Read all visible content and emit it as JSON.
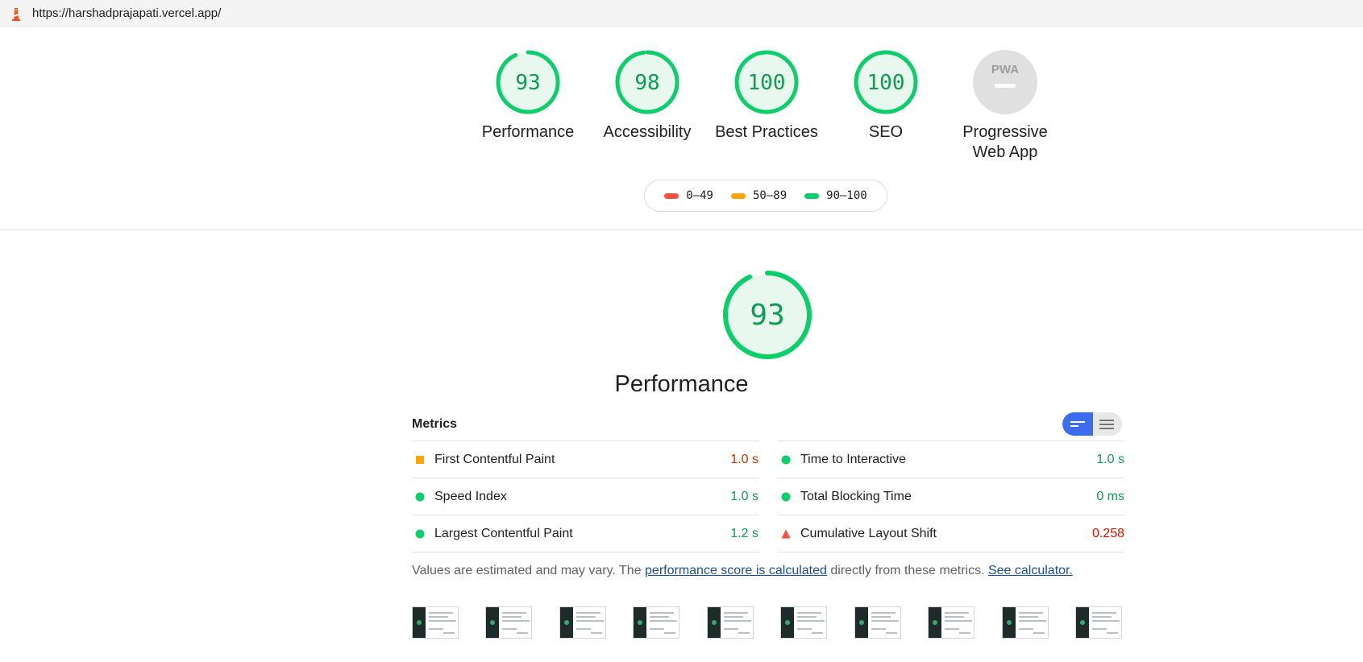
{
  "address_bar": {
    "url": "https://harshadprajapati.vercel.app/"
  },
  "colors": {
    "pass": "#0cce6b",
    "pass_text": "#0c9d4f",
    "average": "#ffa400",
    "average_text": "#c33300",
    "fail": "#ff4e42",
    "fail_text": "#eb0f00",
    "link": "#1a4ea0",
    "toggle_active": "#3c6df0"
  },
  "gauges": [
    {
      "score": "93",
      "label": "Performance",
      "value": 0.93,
      "status": "pass"
    },
    {
      "score": "98",
      "label": "Accessibility",
      "value": 0.98,
      "status": "pass"
    },
    {
      "score": "100",
      "label": "Best Practices",
      "value": 1.0,
      "status": "pass"
    },
    {
      "score": "100",
      "label": "SEO",
      "value": 1.0,
      "status": "pass"
    },
    {
      "score": "",
      "label_line1": "Progressive",
      "label_line2": "Web App",
      "badge": "PWA",
      "status": "na"
    }
  ],
  "legend": [
    {
      "label": "0–49",
      "status": "fail"
    },
    {
      "label": "50–89",
      "status": "average"
    },
    {
      "label": "90–100",
      "status": "pass"
    }
  ],
  "performance": {
    "score": "93",
    "value": 0.93,
    "title": "Performance"
  },
  "metrics": {
    "title": "Metrics",
    "left": [
      {
        "label": "First Contentful Paint",
        "value": "1.0 s",
        "status": "average",
        "icon": "square-icon"
      },
      {
        "label": "Speed Index",
        "value": "1.0 s",
        "status": "pass",
        "icon": "circle-icon"
      },
      {
        "label": "Largest Contentful Paint",
        "value": "1.2 s",
        "status": "pass",
        "icon": "circle-icon"
      }
    ],
    "right": [
      {
        "label": "Time to Interactive",
        "value": "1.0 s",
        "status": "pass",
        "icon": "circle-icon"
      },
      {
        "label": "Total Blocking Time",
        "value": "0 ms",
        "status": "pass",
        "icon": "circle-icon"
      },
      {
        "label": "Cumulative Layout Shift",
        "value": "0.258",
        "status": "fail",
        "icon": "triangle-icon"
      }
    ]
  },
  "note": {
    "prefix": "Values are estimated and may vary. The ",
    "link1": "performance score is calculated",
    "middle": " directly from these metrics. ",
    "link2": "See calculator."
  },
  "filmstrip": {
    "frame_count": 10
  }
}
